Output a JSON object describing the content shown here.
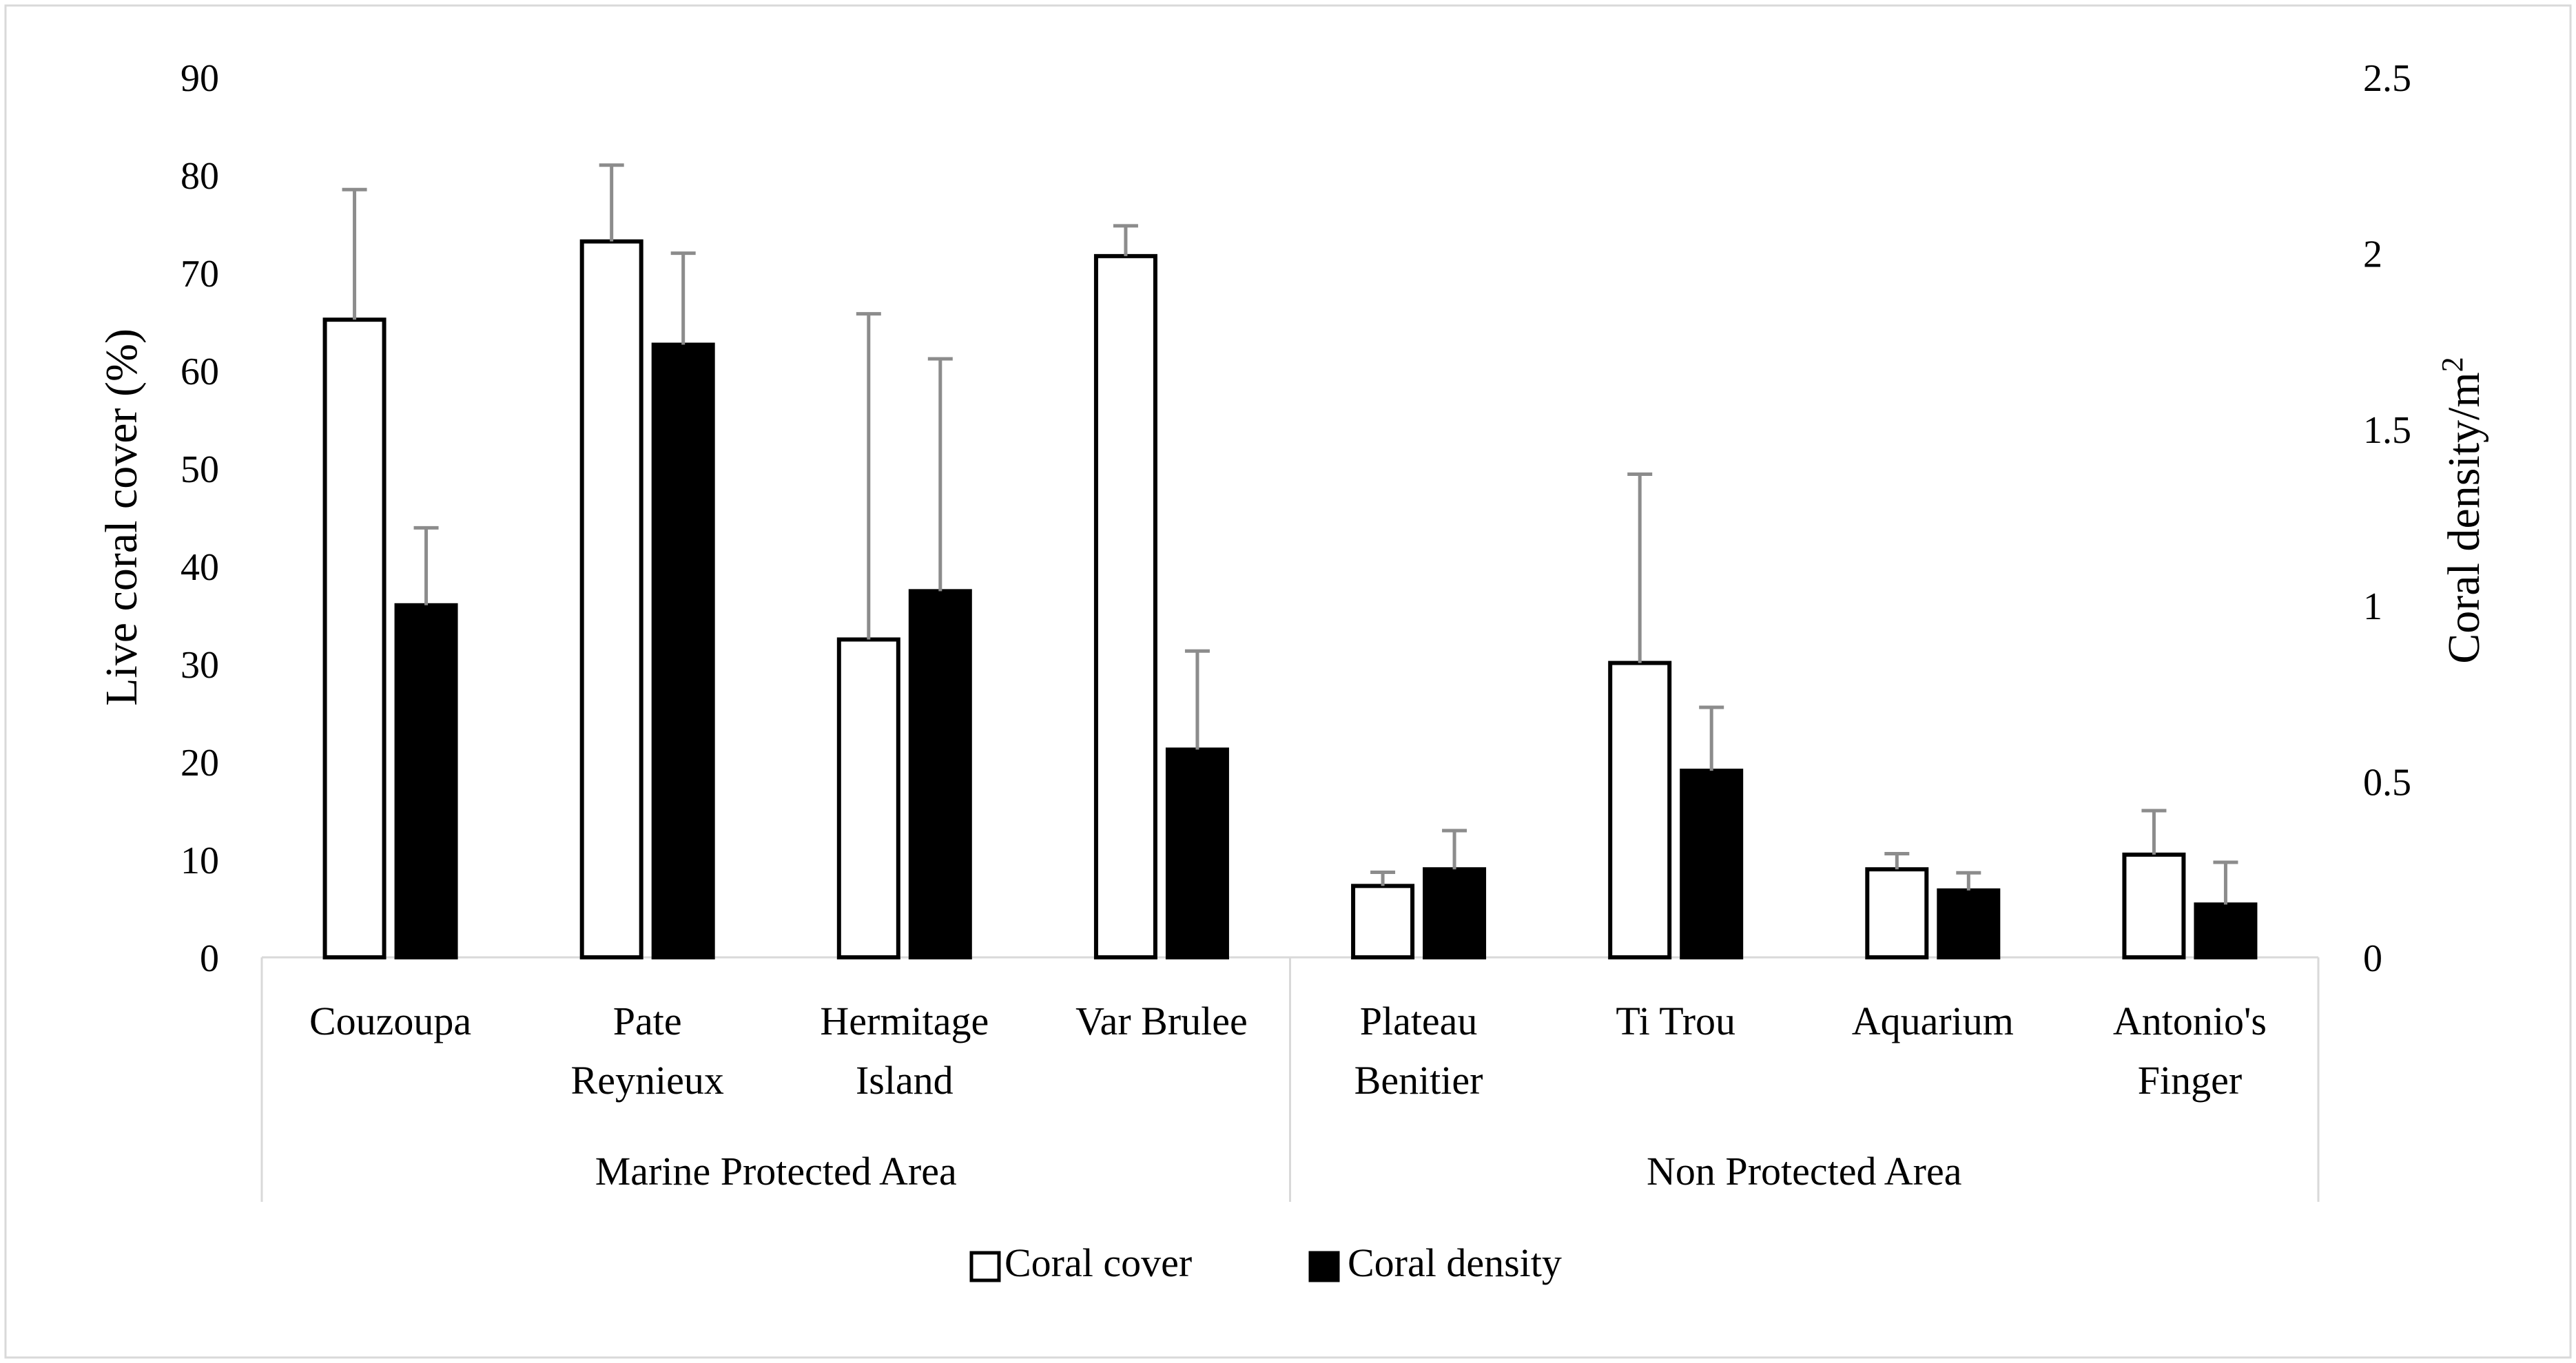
{
  "chart_data": {
    "type": "bar",
    "categories": [
      "Couzoupa",
      "Pate Reynieux",
      "Hermitage Island",
      "Var Brulee",
      "Plateau Benitier",
      "Ti Trou",
      "Aquarium",
      "Antonio's Finger"
    ],
    "category_label_lines": [
      [
        "Couzoupa"
      ],
      [
        "Pate",
        "Reynieux"
      ],
      [
        "Hermitage",
        "Island"
      ],
      [
        "Var Brulee"
      ],
      [
        "Plateau",
        "Benitier"
      ],
      [
        "Ti Trou"
      ],
      [
        "Aquarium"
      ],
      [
        "Antonio's",
        "Finger"
      ]
    ],
    "groups": [
      {
        "label": "Marine Protected Area",
        "start": 0,
        "end": 3
      },
      {
        "label": "Non Protected Area",
        "start": 4,
        "end": 7
      }
    ],
    "series": [
      {
        "name": "Coral cover",
        "axis": "left",
        "fill": "#ffffff",
        "stroke": "#000000",
        "values": [
          65.2,
          73.2,
          32.5,
          71.7,
          7.3,
          30.1,
          9.0,
          10.5
        ],
        "error_upper": [
          78.5,
          81.0,
          65.8,
          74.8,
          8.7,
          49.4,
          10.6,
          15.0
        ]
      },
      {
        "name": "Coral density",
        "axis": "right",
        "fill": "#000000",
        "stroke": "#000000",
        "values": [
          1.0,
          1.74,
          1.04,
          0.59,
          0.25,
          0.53,
          0.19,
          0.15
        ],
        "error_upper": [
          1.22,
          2.0,
          1.7,
          0.87,
          0.36,
          0.71,
          0.24,
          0.27
        ]
      }
    ],
    "left_axis": {
      "label": "Live coral cover (%)",
      "min": 0,
      "max": 90,
      "ticks": [
        "0",
        "10",
        "20",
        "30",
        "40",
        "50",
        "60",
        "70",
        "80",
        "90"
      ]
    },
    "right_axis": {
      "label_main": "Coral density/m",
      "label_sup": "2",
      "min": 0,
      "max": 2.5,
      "ticks": [
        "0",
        "0.5",
        "1",
        "1.5",
        "2",
        "2.5"
      ]
    },
    "legend": {
      "position": "bottom-center",
      "items": [
        "Coral cover",
        "Coral density"
      ]
    },
    "error_bar_color": "#8c8c8c",
    "grid": false
  }
}
